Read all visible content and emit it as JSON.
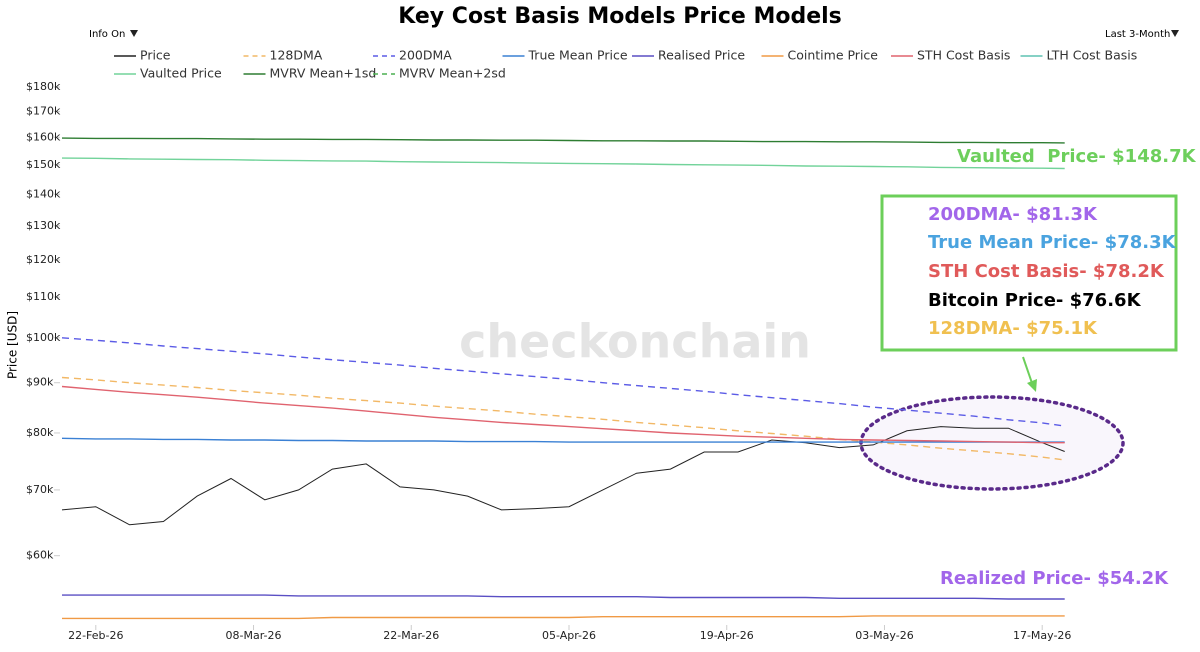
{
  "chart_data": {
    "type": "line",
    "title": "Key Cost Basis Models Price Models",
    "controls": {
      "info": "Info On",
      "range": "Last 3-Month"
    },
    "y_label": "Price [USD]",
    "watermark": "checkonchain",
    "log_y": true,
    "ylim": [
      51,
      183
    ],
    "yticks": [
      {
        "value": 60,
        "label": "$60k"
      },
      {
        "value": 70,
        "label": "$70k"
      },
      {
        "value": 80,
        "label": "$80k"
      },
      {
        "value": 90,
        "label": "$90k"
      },
      {
        "value": 100,
        "label": "$100k"
      },
      {
        "value": 110,
        "label": "$110k"
      },
      {
        "value": 120,
        "label": "$120k"
      },
      {
        "value": 130,
        "label": "$130k"
      },
      {
        "value": 140,
        "label": "$140k"
      },
      {
        "value": 150,
        "label": "$150k"
      },
      {
        "value": 160,
        "label": "$160k"
      },
      {
        "value": 170,
        "label": "$170k"
      },
      {
        "value": 180,
        "label": "$180k"
      }
    ],
    "xlim": [
      "2026-02-19",
      "2026-05-20"
    ],
    "xticks": [
      {
        "value": "2026-02-22",
        "label": "22-Feb-26"
      },
      {
        "value": "2026-03-08",
        "label": "08-Mar-26"
      },
      {
        "value": "2026-03-22",
        "label": "22-Mar-26"
      },
      {
        "value": "2026-04-05",
        "label": "05-Apr-26"
      },
      {
        "value": "2026-04-19",
        "label": "19-Apr-26"
      },
      {
        "value": "2026-05-03",
        "label": "03-May-26"
      },
      {
        "value": "2026-05-17",
        "label": "17-May-26"
      }
    ],
    "x": [
      "2026-02-19",
      "2026-02-22",
      "2026-02-25",
      "2026-02-28",
      "2026-03-03",
      "2026-03-06",
      "2026-03-09",
      "2026-03-12",
      "2026-03-15",
      "2026-03-18",
      "2026-03-21",
      "2026-03-24",
      "2026-03-27",
      "2026-03-30",
      "2026-04-02",
      "2026-04-05",
      "2026-04-08",
      "2026-04-11",
      "2026-04-14",
      "2026-04-17",
      "2026-04-20",
      "2026-04-23",
      "2026-04-26",
      "2026-04-29",
      "2026-05-02",
      "2026-05-05",
      "2026-05-08",
      "2026-05-11",
      "2026-05-14",
      "2026-05-17",
      "2026-05-19"
    ],
    "series": [
      {
        "name": "Price",
        "color": "#222222",
        "dash": false,
        "values": [
          66.8,
          67.3,
          64.5,
          65.0,
          69.0,
          71.9,
          68.4,
          70.0,
          73.5,
          74.4,
          70.5,
          70.0,
          69.0,
          66.8,
          67.0,
          67.3,
          70.0,
          72.8,
          73.5,
          76.5,
          76.5,
          78.7,
          78.2,
          77.3,
          77.8,
          80.4,
          81.2,
          80.9,
          80.9,
          78.2,
          76.6
        ]
      },
      {
        "name": "128DMA",
        "color": "#f2b866",
        "dash": true,
        "values": [
          91.1,
          90.6,
          90.0,
          89.5,
          89.0,
          88.4,
          87.9,
          87.4,
          86.8,
          86.3,
          85.8,
          85.2,
          84.7,
          84.2,
          83.6,
          83.1,
          82.6,
          82.0,
          81.5,
          81.0,
          80.4,
          79.9,
          79.4,
          78.8,
          78.3,
          77.8,
          77.2,
          76.7,
          76.2,
          75.6,
          75.1
        ]
      },
      {
        "name": "200DMA",
        "color": "#5b5be6",
        "dash": true,
        "values": [
          100,
          99.4,
          98.8,
          98.1,
          97.5,
          96.9,
          96.3,
          95.6,
          95.0,
          94.4,
          93.8,
          93.1,
          92.5,
          91.9,
          91.3,
          90.7,
          90.0,
          89.4,
          88.8,
          88.2,
          87.5,
          86.9,
          86.3,
          85.7,
          85.0,
          84.4,
          83.8,
          83.2,
          82.5,
          81.9,
          81.3
        ]
      },
      {
        "name": "True Mean Price",
        "color": "#3a80d4",
        "dash": false,
        "values": [
          79.0,
          78.9,
          78.9,
          78.8,
          78.8,
          78.7,
          78.7,
          78.6,
          78.6,
          78.5,
          78.5,
          78.5,
          78.4,
          78.4,
          78.4,
          78.3,
          78.3,
          78.3,
          78.3,
          78.3,
          78.3,
          78.3,
          78.3,
          78.3,
          78.3,
          78.3,
          78.3,
          78.3,
          78.3,
          78.3,
          78.3
        ]
      },
      {
        "name": "Realised Price",
        "color": "#5a4fc4",
        "dash": false,
        "values": [
          54.7,
          54.7,
          54.7,
          54.7,
          54.7,
          54.7,
          54.7,
          54.6,
          54.6,
          54.6,
          54.6,
          54.6,
          54.6,
          54.5,
          54.5,
          54.5,
          54.5,
          54.5,
          54.4,
          54.4,
          54.4,
          54.4,
          54.4,
          54.3,
          54.3,
          54.3,
          54.3,
          54.3,
          54.2,
          54.2,
          54.2
        ]
      },
      {
        "name": "Cointime Price",
        "color": "#f09a45",
        "dash": false,
        "values": [
          51.8,
          51.8,
          51.8,
          51.8,
          51.8,
          51.8,
          51.8,
          51.8,
          51.9,
          51.9,
          51.9,
          51.9,
          51.9,
          51.9,
          51.9,
          51.9,
          52.0,
          52.0,
          52.0,
          52.0,
          52.0,
          52.0,
          52.0,
          52.0,
          52.1,
          52.1,
          52.1,
          52.1,
          52.1,
          52.1,
          52.1
        ]
      },
      {
        "name": "STH Cost Basis",
        "color": "#e0636f",
        "dash": false,
        "values": [
          89.2,
          88.6,
          88.0,
          87.5,
          87.0,
          86.4,
          85.8,
          85.3,
          84.8,
          84.2,
          83.6,
          83.0,
          82.5,
          82.0,
          81.6,
          81.2,
          80.8,
          80.4,
          80.0,
          79.7,
          79.4,
          79.2,
          79.0,
          78.8,
          78.7,
          78.6,
          78.5,
          78.4,
          78.3,
          78.2,
          78.2
        ]
      },
      {
        "name": "LTH Cost Basis",
        "color": "#5fc2b2",
        "dash": false,
        "values": [
          null,
          null,
          null,
          null,
          null,
          null,
          null,
          null,
          null,
          null,
          null,
          null,
          null,
          null,
          null,
          null,
          null,
          null,
          null,
          null,
          null,
          null,
          null,
          null,
          null,
          null,
          null,
          null,
          null,
          null,
          null
        ]
      },
      {
        "name": "Vaulted Price",
        "color": "#72d39a",
        "dash": false,
        "values": [
          152.4,
          152.3,
          152.1,
          152.0,
          151.9,
          151.8,
          151.6,
          151.5,
          151.4,
          151.3,
          151.1,
          151.0,
          150.9,
          150.8,
          150.6,
          150.5,
          150.4,
          150.3,
          150.1,
          150.0,
          149.9,
          149.8,
          149.6,
          149.5,
          149.4,
          149.3,
          149.1,
          149.0,
          148.9,
          148.8,
          148.7
        ]
      },
      {
        "name": "MVRV Mean+1sd",
        "color": "#2e7d32",
        "dash": false,
        "values": [
          159.7,
          159.6,
          159.6,
          159.5,
          159.5,
          159.4,
          159.3,
          159.3,
          159.2,
          159.2,
          159.1,
          159.0,
          159.0,
          158.9,
          158.9,
          158.8,
          158.7,
          158.7,
          158.6,
          158.6,
          158.5,
          158.4,
          158.4,
          158.3,
          158.3,
          158.2,
          158.1,
          158.1,
          158.0,
          158.0,
          157.9
        ]
      },
      {
        "name": "MVRV Mean+2sd",
        "color": "#4caf50",
        "dash": true,
        "values": [
          null,
          null,
          null,
          null,
          null,
          null,
          null,
          null,
          null,
          null,
          null,
          null,
          null,
          null,
          null,
          null,
          null,
          null,
          null,
          null,
          null,
          null,
          null,
          null,
          null,
          null,
          null,
          null,
          null,
          null,
          null
        ]
      }
    ],
    "annotations": [
      {
        "text": "Vaulted  Price- $148.7K",
        "color": "#6dcf5c"
      },
      {
        "text": "200DMA- $81.3K",
        "color": "#a266ea"
      },
      {
        "text": "True Mean Price- $78.3K",
        "color": "#4aa3df"
      },
      {
        "text": "STH Cost Basis- $78.2K",
        "color": "#e05a5a"
      },
      {
        "text": "Bitcoin Price- $76.6K",
        "color": "#000000"
      },
      {
        "text": "128DMA- $75.1K",
        "color": "#f0c050"
      },
      {
        "text": "Realized Price- $54.2K",
        "color": "#a266ea"
      }
    ]
  }
}
